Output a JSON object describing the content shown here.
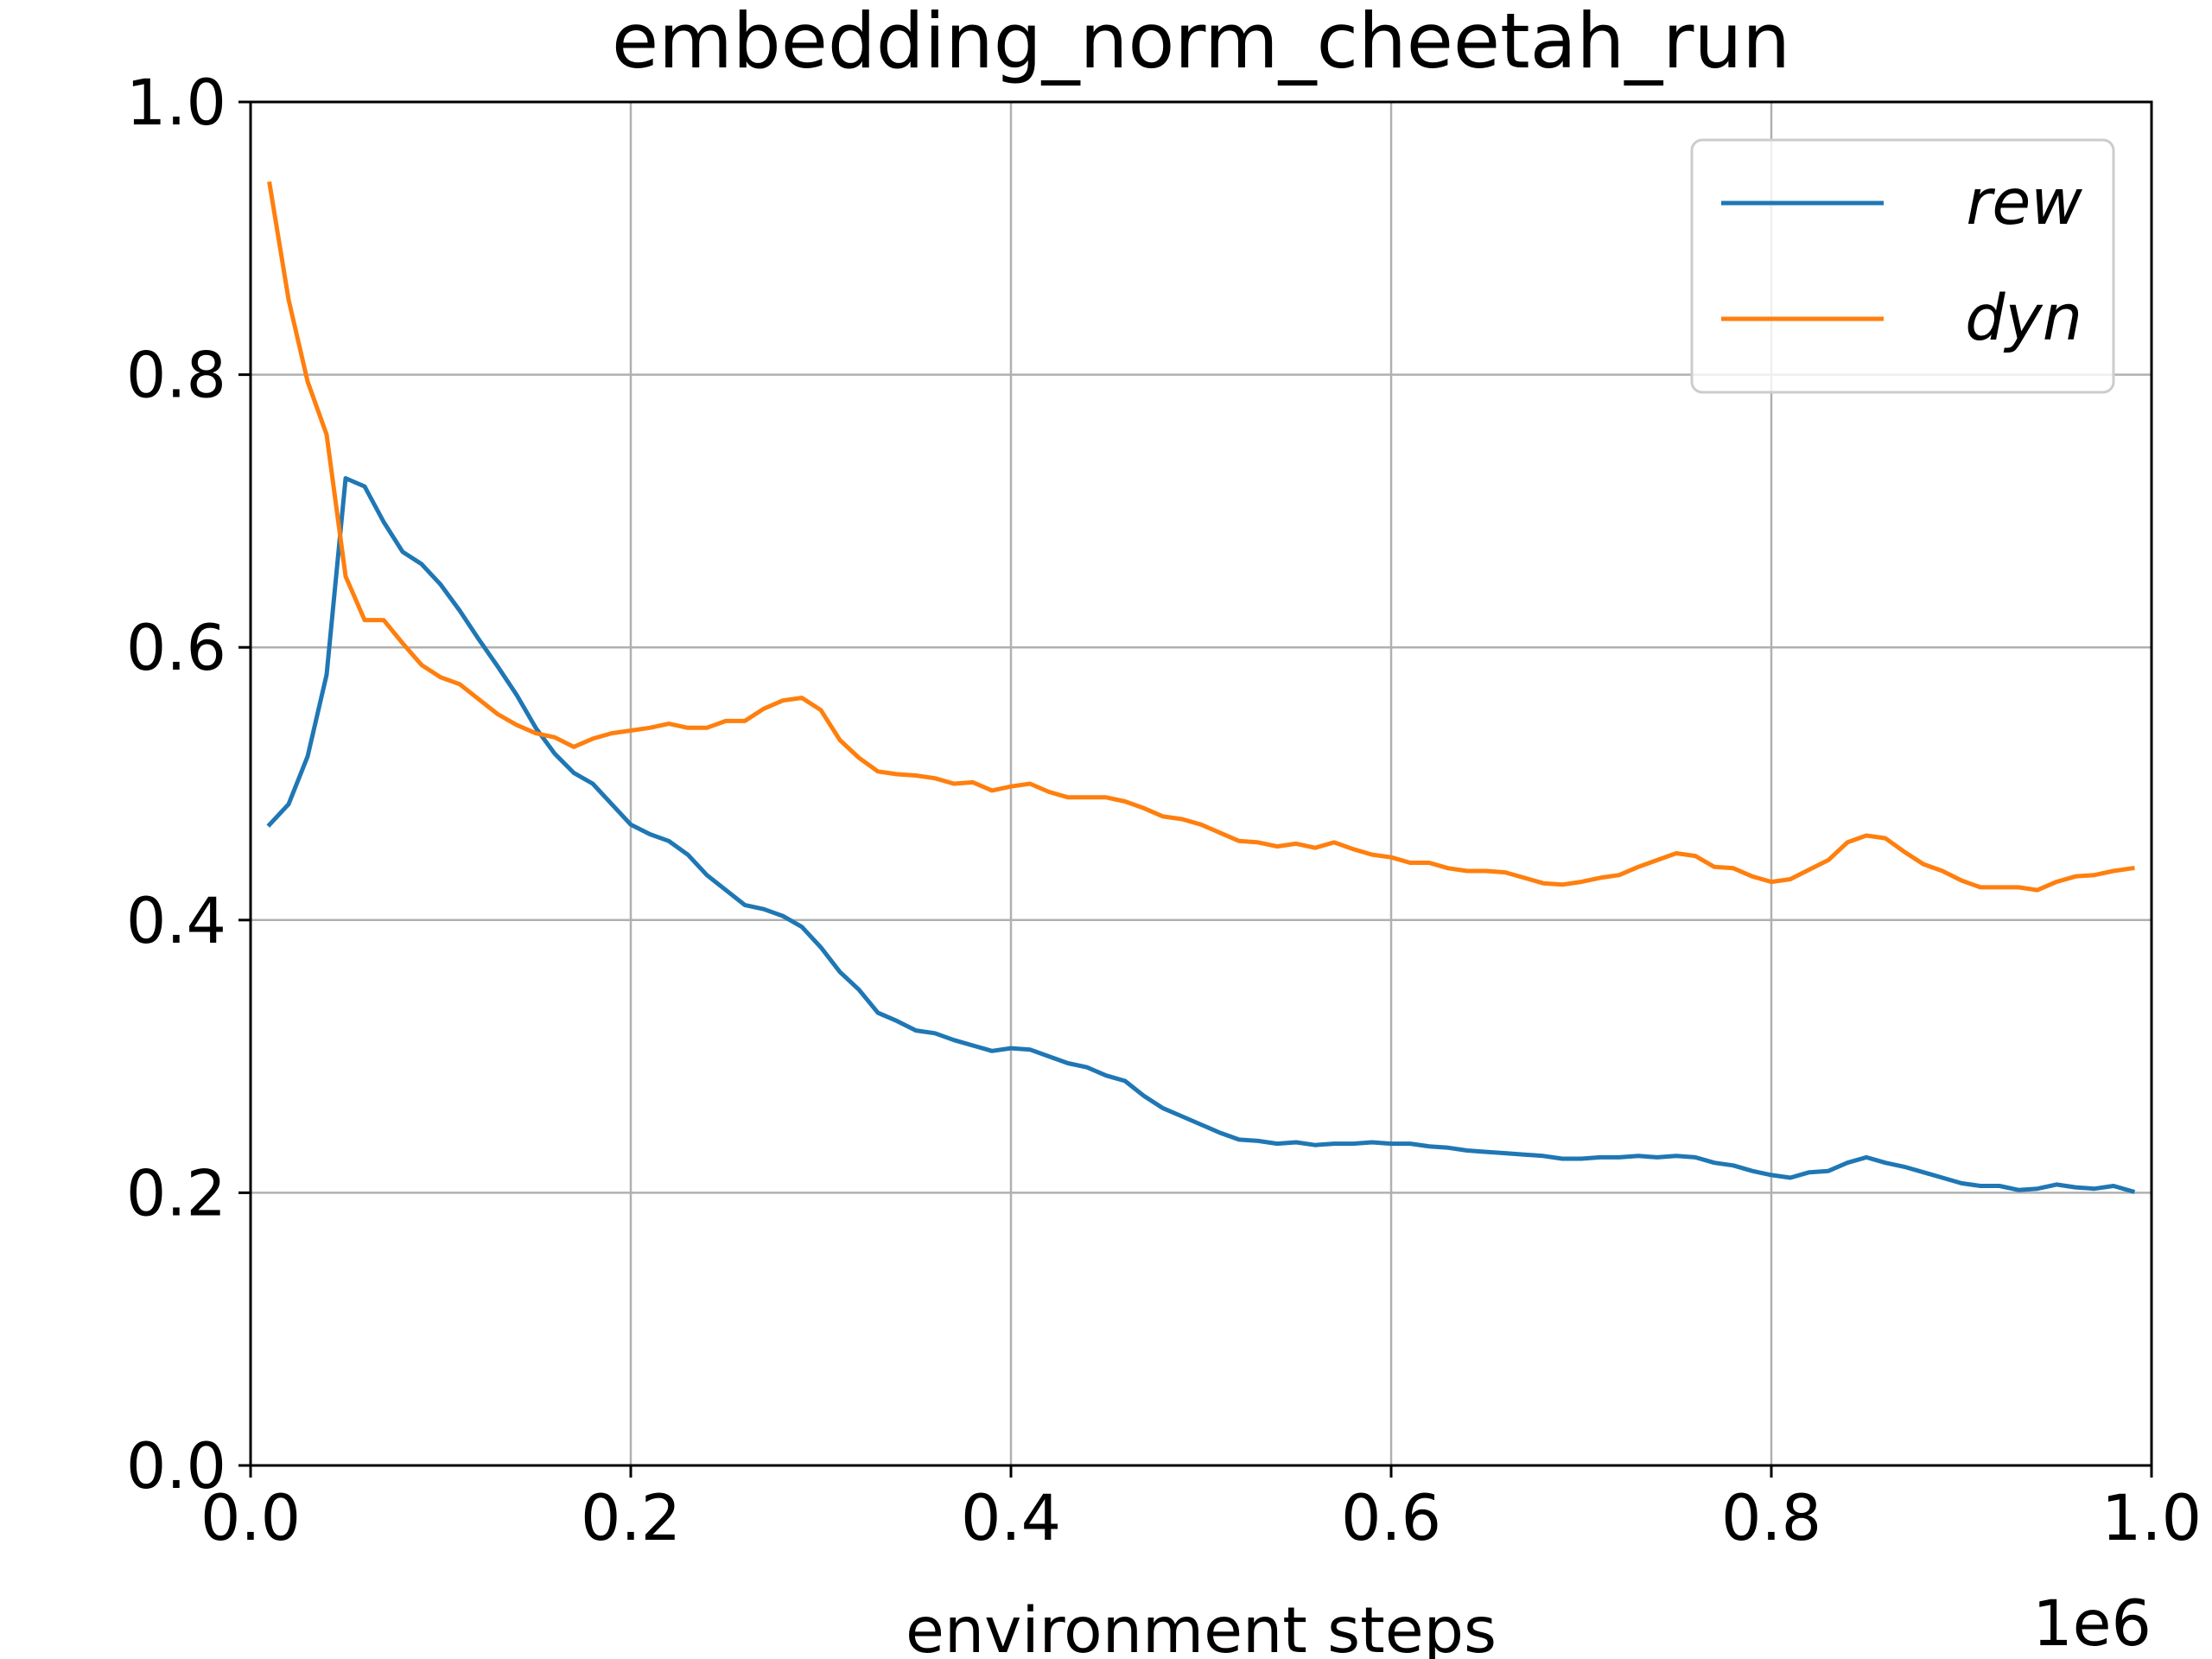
{
  "chart_data": {
    "type": "line",
    "title": "embedding_norm_cheetah_run",
    "xlabel": "environment steps",
    "ylabel": "",
    "x_offset_label": "1e6",
    "xlim": [
      0.0,
      1.0
    ],
    "ylim": [
      0.0,
      1.0
    ],
    "xticks": [
      0.0,
      0.2,
      0.4,
      0.6,
      0.8,
      1.0
    ],
    "xtick_labels": [
      "0.0",
      "0.2",
      "0.4",
      "0.6",
      "0.8",
      "1.0"
    ],
    "yticks": [
      0.0,
      0.2,
      0.4,
      0.6,
      0.8,
      1.0
    ],
    "ytick_labels": [
      "0.0",
      "0.2",
      "0.4",
      "0.6",
      "0.8",
      "1.0"
    ],
    "grid": true,
    "legend_position": "top-right",
    "x": [
      0.01,
      0.02,
      0.03,
      0.04,
      0.05,
      0.06,
      0.07,
      0.08,
      0.09,
      0.1,
      0.11,
      0.12,
      0.13,
      0.14,
      0.15,
      0.16,
      0.17,
      0.18,
      0.19,
      0.2,
      0.21,
      0.22,
      0.23,
      0.24,
      0.25,
      0.26,
      0.27,
      0.28,
      0.29,
      0.3,
      0.31,
      0.32,
      0.33,
      0.34,
      0.35,
      0.36,
      0.37,
      0.38,
      0.39,
      0.4,
      0.41,
      0.42,
      0.43,
      0.44,
      0.45,
      0.46,
      0.47,
      0.48,
      0.49,
      0.5,
      0.51,
      0.52,
      0.53,
      0.54,
      0.55,
      0.56,
      0.57,
      0.58,
      0.59,
      0.6,
      0.61,
      0.62,
      0.63,
      0.64,
      0.65,
      0.66,
      0.67,
      0.68,
      0.69,
      0.7,
      0.71,
      0.72,
      0.73,
      0.74,
      0.75,
      0.76,
      0.77,
      0.78,
      0.79,
      0.8,
      0.81,
      0.82,
      0.83,
      0.84,
      0.85,
      0.86,
      0.87,
      0.88,
      0.89,
      0.9,
      0.91,
      0.92,
      0.93,
      0.94,
      0.95,
      0.96,
      0.97,
      0.98,
      0.99
    ],
    "series": [
      {
        "name": "rew",
        "color": "#1f77b4",
        "values": [
          0.47,
          0.485,
          0.52,
          0.58,
          0.724,
          0.718,
          0.692,
          0.67,
          0.661,
          0.646,
          0.627,
          0.606,
          0.586,
          0.565,
          0.541,
          0.522,
          0.508,
          0.5,
          0.485,
          0.47,
          0.463,
          0.458,
          0.448,
          0.433,
          0.422,
          0.411,
          0.408,
          0.403,
          0.395,
          0.38,
          0.362,
          0.349,
          0.332,
          0.326,
          0.319,
          0.317,
          0.312,
          0.308,
          0.304,
          0.306,
          0.305,
          0.3,
          0.295,
          0.292,
          0.286,
          0.282,
          0.271,
          0.262,
          0.256,
          0.25,
          0.244,
          0.239,
          0.238,
          0.236,
          0.237,
          0.235,
          0.236,
          0.236,
          0.237,
          0.236,
          0.236,
          0.234,
          0.233,
          0.231,
          0.23,
          0.229,
          0.228,
          0.227,
          0.225,
          0.225,
          0.226,
          0.226,
          0.227,
          0.226,
          0.227,
          0.226,
          0.222,
          0.22,
          0.216,
          0.213,
          0.211,
          0.215,
          0.216,
          0.222,
          0.226,
          0.222,
          0.219,
          0.215,
          0.211,
          0.207,
          0.205,
          0.205,
          0.202,
          0.203,
          0.206,
          0.204,
          0.203,
          0.205,
          0.201
        ]
      },
      {
        "name": "dyn",
        "color": "#ff7f0e",
        "values": [
          0.94,
          0.855,
          0.795,
          0.756,
          0.652,
          0.62,
          0.62,
          0.603,
          0.587,
          0.578,
          0.573,
          0.562,
          0.551,
          0.543,
          0.537,
          0.534,
          0.527,
          0.533,
          0.537,
          0.539,
          0.541,
          0.544,
          0.541,
          0.541,
          0.546,
          0.546,
          0.555,
          0.561,
          0.563,
          0.554,
          0.532,
          0.519,
          0.509,
          0.507,
          0.506,
          0.504,
          0.5,
          0.501,
          0.495,
          0.498,
          0.5,
          0.494,
          0.49,
          0.49,
          0.49,
          0.487,
          0.482,
          0.476,
          0.474,
          0.47,
          0.464,
          0.458,
          0.457,
          0.454,
          0.456,
          0.453,
          0.457,
          0.452,
          0.448,
          0.446,
          0.442,
          0.442,
          0.438,
          0.436,
          0.436,
          0.435,
          0.431,
          0.427,
          0.426,
          0.428,
          0.431,
          0.433,
          0.439,
          0.444,
          0.449,
          0.447,
          0.439,
          0.438,
          0.432,
          0.428,
          0.43,
          0.437,
          0.444,
          0.457,
          0.462,
          0.46,
          0.45,
          0.441,
          0.436,
          0.429,
          0.424,
          0.424,
          0.424,
          0.422,
          0.428,
          0.432,
          0.433,
          0.436,
          0.438
        ]
      }
    ]
  }
}
